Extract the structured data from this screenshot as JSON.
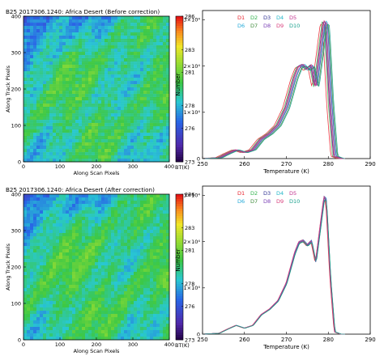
{
  "chart_data": [
    {
      "type": "heatmap",
      "title": "B25 2017306.1240: Africa Desert (Before correction)",
      "xlabel": "Along Scan Pixels",
      "ylabel": "Along Track Pixels",
      "xlim": [
        0,
        400
      ],
      "ylim": [
        0,
        400
      ],
      "xticks": [
        "0",
        "100",
        "200",
        "300",
        "400"
      ],
      "yticks": [
        "0",
        "100",
        "200",
        "300",
        "400"
      ],
      "colorbar": {
        "label": "BT(K)",
        "range": [
          273,
          286
        ],
        "ticks": [
          "273",
          "276",
          "278",
          "281",
          "283",
          "286"
        ]
      },
      "has_striping": true
    },
    {
      "type": "line",
      "xlabel": "Temperature (K)",
      "ylabel": "Number",
      "xlim": [
        250,
        290
      ],
      "ylim": [
        0,
        32000
      ],
      "xticks": [
        "250",
        "260",
        "270",
        "280",
        "290"
      ],
      "yticks": [
        "0",
        "1×10⁴",
        "2×10⁴",
        "3×10⁴"
      ],
      "legend": "top-right",
      "series": [
        {
          "name": "D1",
          "color": "#e8202a",
          "shift": -0.9
        },
        {
          "name": "D2",
          "color": "#2fb34a",
          "shift": -0.5
        },
        {
          "name": "D3",
          "color": "#2e3192",
          "shift": -0.2
        },
        {
          "name": "D4",
          "color": "#20b5c8",
          "shift": 0.1
        },
        {
          "name": "D5",
          "color": "#c2308f",
          "shift": -0.3
        },
        {
          "name": "D6",
          "color": "#23a9d8",
          "shift": 0.4
        },
        {
          "name": "D7",
          "color": "#3d8b3a",
          "shift": 0.6
        },
        {
          "name": "D8",
          "color": "#7a3fb5",
          "shift": 0.3
        },
        {
          "name": "D9",
          "color": "#d83c7a",
          "shift": 0.0
        },
        {
          "name": "D10",
          "color": "#18a08c",
          "shift": 0.8
        }
      ],
      "base_curve": {
        "x": [
          250,
          254,
          256,
          258,
          260,
          262,
          264,
          266,
          268,
          270,
          272,
          273,
          274,
          275,
          276,
          277,
          278,
          279,
          279.5,
          280.5,
          281.5,
          283
        ],
        "y": [
          0,
          200,
          1100,
          1900,
          1300,
          1900,
          4200,
          5400,
          7200,
          11000,
          17500,
          19800,
          20200,
          19200,
          20100,
          15500,
          22500,
          29500,
          29000,
          12000,
          500,
          0
        ]
      }
    },
    {
      "type": "heatmap",
      "title": "B25 2017306.1240: Africa Desert (After correction)",
      "xlabel": "Along Scan Pixels",
      "ylabel": "Along Track Pixels",
      "xlim": [
        0,
        400
      ],
      "ylim": [
        0,
        400
      ],
      "xticks": [
        "0",
        "100",
        "200",
        "300",
        "400"
      ],
      "yticks": [
        "0",
        "100",
        "200",
        "300",
        "400"
      ],
      "colorbar": {
        "label": "BT(K)",
        "range": [
          273,
          286
        ],
        "ticks": [
          "273",
          "276",
          "278",
          "281",
          "283",
          "286"
        ]
      },
      "has_striping": false
    },
    {
      "type": "line",
      "xlabel": "Temperature (K)",
      "ylabel": "Number",
      "xlim": [
        250,
        290
      ],
      "ylim": [
        0,
        32000
      ],
      "xticks": [
        "250",
        "260",
        "270",
        "280",
        "290"
      ],
      "yticks": [
        "0",
        "1×10⁴",
        "2×10⁴",
        "3×10⁴"
      ],
      "legend": "top-right",
      "series": [
        {
          "name": "D1",
          "color": "#e8202a",
          "shift": -0.12
        },
        {
          "name": "D2",
          "color": "#2fb34a",
          "shift": -0.06
        },
        {
          "name": "D3",
          "color": "#2e3192",
          "shift": 0.0
        },
        {
          "name": "D4",
          "color": "#20b5c8",
          "shift": 0.05
        },
        {
          "name": "D5",
          "color": "#c2308f",
          "shift": -0.03
        },
        {
          "name": "D6",
          "color": "#23a9d8",
          "shift": 0.08
        },
        {
          "name": "D7",
          "color": "#3d8b3a",
          "shift": 0.1
        },
        {
          "name": "D8",
          "color": "#7a3fb5",
          "shift": 0.03
        },
        {
          "name": "D9",
          "color": "#d83c7a",
          "shift": -0.08
        },
        {
          "name": "D10",
          "color": "#18a08c",
          "shift": 0.12
        }
      ],
      "base_curve": {
        "x": [
          250,
          254,
          256,
          258,
          260,
          262,
          264,
          266,
          268,
          270,
          272,
          273,
          274,
          275,
          276,
          277,
          278,
          279,
          279.5,
          280.5,
          281.5,
          283
        ],
        "y": [
          0,
          200,
          1100,
          1900,
          1300,
          1900,
          4200,
          5400,
          7200,
          11000,
          17500,
          19800,
          20200,
          19200,
          20100,
          15500,
          22500,
          29500,
          29000,
          12000,
          500,
          0
        ]
      }
    }
  ]
}
